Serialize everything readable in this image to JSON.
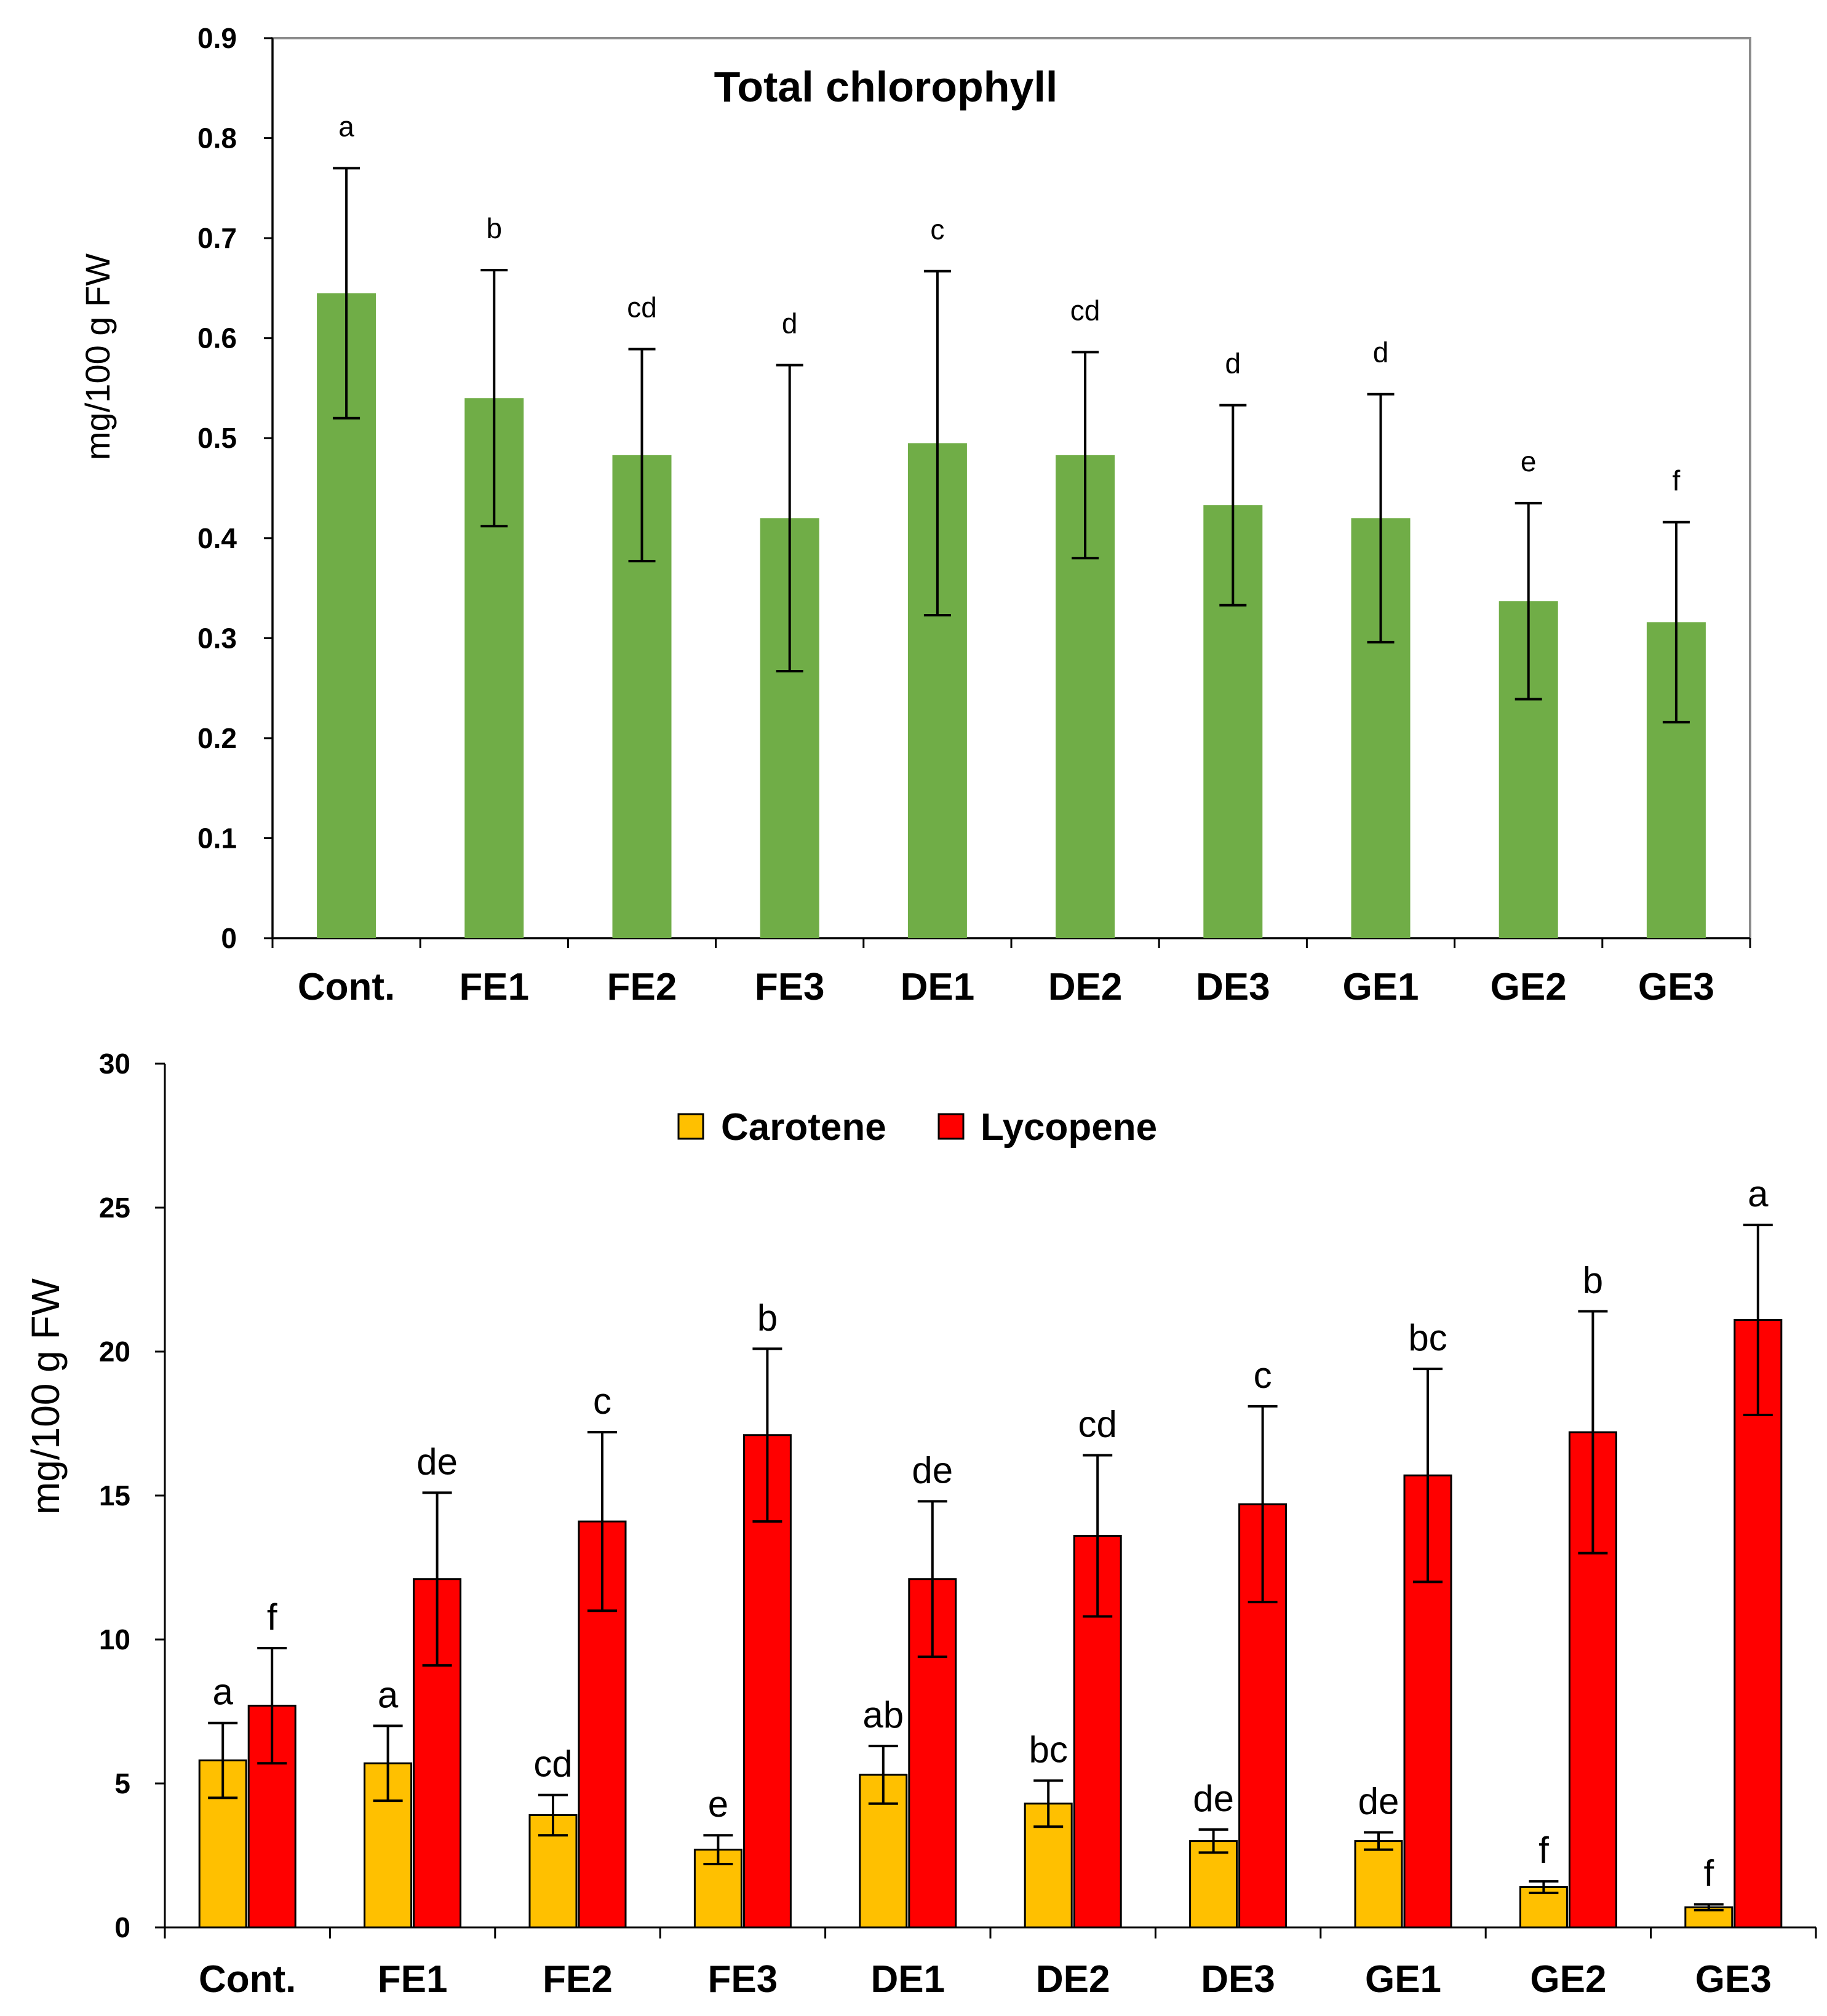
{
  "chart_data": [
    {
      "type": "bar",
      "title": "Total chlorophyll",
      "ylabel": "mg/100 g FW",
      "xlabel": "",
      "ylim": [
        0,
        0.9
      ],
      "yticks": [
        "0",
        "0.1",
        "0.2",
        "0.3",
        "0.4",
        "0.5",
        "0.6",
        "0.7",
        "0.8",
        "0.9"
      ],
      "categories": [
        "Cont.",
        "FE1",
        "FE2",
        "FE3",
        "DE1",
        "DE2",
        "DE3",
        "GE1",
        "GE2",
        "GE3"
      ],
      "series": [
        {
          "name": "Total chlorophyll",
          "color": "#70ad47",
          "values": [
            0.645,
            0.54,
            0.483,
            0.42,
            0.495,
            0.483,
            0.433,
            0.42,
            0.337,
            0.316
          ],
          "error": [
            0.125,
            0.128,
            0.106,
            0.153,
            0.172,
            0.103,
            0.1,
            0.124,
            0.098,
            0.1
          ],
          "letters": [
            "a",
            "b",
            "cd",
            "d",
            "c",
            "cd",
            "d",
            "d",
            "e",
            "f"
          ]
        }
      ]
    },
    {
      "type": "bar",
      "title": "",
      "ylabel": "mg/100 g FW",
      "xlabel": "",
      "ylim": [
        0,
        30
      ],
      "yticks": [
        "0",
        "5",
        "10",
        "15",
        "20",
        "25",
        "30"
      ],
      "legend_position": "top-center",
      "categories": [
        "Cont.",
        "FE1",
        "FE2",
        "FE3",
        "DE1",
        "DE2",
        "DE3",
        "GE1",
        "GE2",
        "GE3"
      ],
      "series": [
        {
          "name": "Carotene",
          "color": "#ffc000",
          "values": [
            5.8,
            5.7,
            3.9,
            2.7,
            5.3,
            4.3,
            3.0,
            3.0,
            1.4,
            0.7
          ],
          "error": [
            1.3,
            1.3,
            0.7,
            0.5,
            1.0,
            0.8,
            0.4,
            0.3,
            0.2,
            0.1
          ],
          "letters": [
            "a",
            "a",
            "cd",
            "e",
            "ab",
            "bc",
            "de",
            "de",
            "f",
            "f"
          ]
        },
        {
          "name": "Lycopene",
          "color": "#ff0000",
          "values": [
            7.7,
            12.1,
            14.1,
            17.1,
            12.1,
            13.6,
            14.7,
            15.7,
            17.2,
            21.1
          ],
          "error": [
            2.0,
            3.0,
            3.1,
            3.0,
            2.7,
            2.8,
            3.4,
            3.7,
            4.2,
            3.3
          ],
          "letters": [
            "f",
            "de",
            "c",
            "b",
            "de",
            "cd",
            "c",
            "bc",
            "b",
            "a"
          ]
        }
      ]
    }
  ]
}
